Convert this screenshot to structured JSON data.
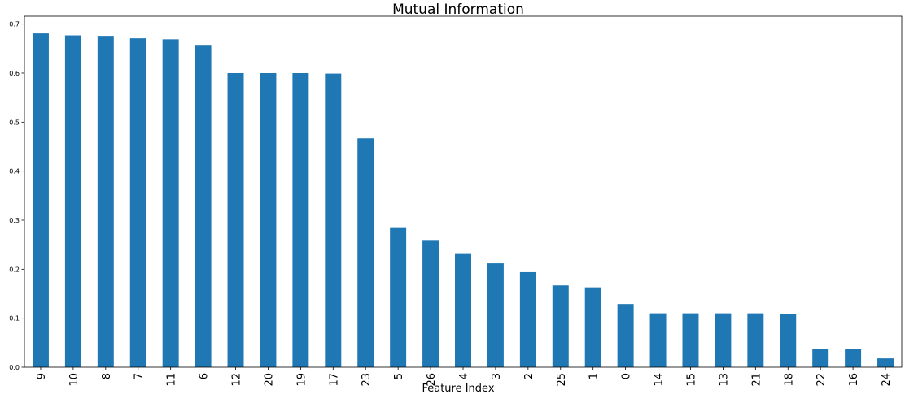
{
  "chart_data": {
    "type": "bar",
    "title": "Mutual Information",
    "xlabel": "Feature Index",
    "ylabel": "",
    "categories": [
      "9",
      "10",
      "8",
      "7",
      "11",
      "6",
      "12",
      "20",
      "19",
      "17",
      "23",
      "5",
      "26",
      "4",
      "3",
      "2",
      "25",
      "1",
      "0",
      "14",
      "15",
      "13",
      "21",
      "18",
      "22",
      "16",
      "24"
    ],
    "values": [
      0.681,
      0.677,
      0.676,
      0.671,
      0.669,
      0.656,
      0.6,
      0.6,
      0.6,
      0.599,
      0.467,
      0.284,
      0.258,
      0.231,
      0.212,
      0.194,
      0.167,
      0.163,
      0.129,
      0.11,
      0.11,
      0.11,
      0.11,
      0.108,
      0.037,
      0.037,
      0.018
    ],
    "ylim": [
      0,
      0.716
    ],
    "yticks": [
      "0.0",
      "0.1",
      "0.2",
      "0.3",
      "0.4",
      "0.5",
      "0.6",
      "0.7"
    ],
    "grid": false,
    "legend": "none",
    "bar_color": "#1f77b4"
  }
}
